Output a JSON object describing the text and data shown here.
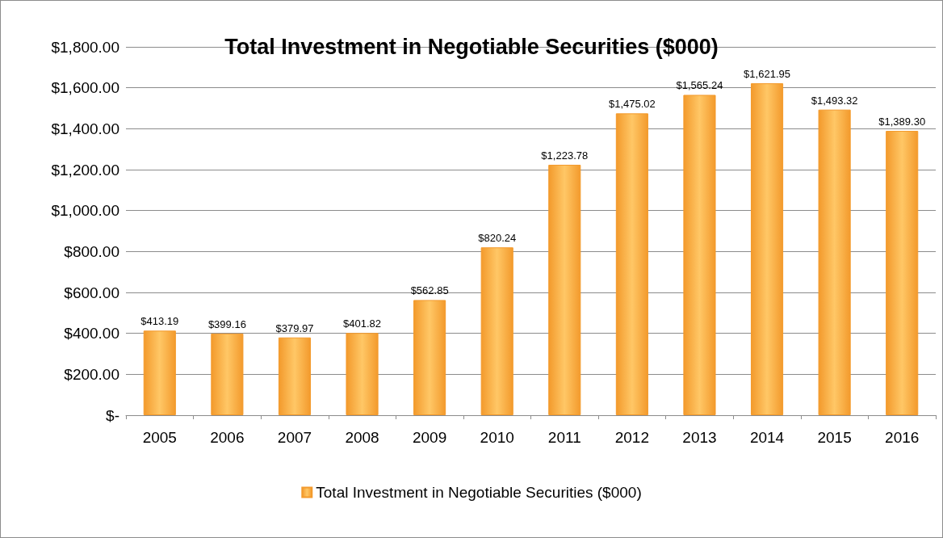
{
  "chart_data": {
    "type": "bar",
    "title": "Total Investment in Negotiable Securities ($000)",
    "categories": [
      "2005",
      "2006",
      "2007",
      "2008",
      "2009",
      "2010",
      "2011",
      "2012",
      "2013",
      "2014",
      "2015",
      "2016"
    ],
    "series": [
      {
        "name": "Total Investment in Negotiable Securities ($000)",
        "color": "#f39a2c",
        "values": [
          413.19,
          399.16,
          379.97,
          401.82,
          562.85,
          820.24,
          1223.78,
          1475.02,
          1565.24,
          1621.95,
          1493.32,
          1389.3
        ],
        "value_labels": [
          "$413.19",
          "$399.16",
          "$379.97",
          "$401.82",
          "$562.85",
          "$820.24",
          "$1,223.78",
          "$1,475.02",
          "$1,565.24",
          "$1,621.95",
          "$1,493.32",
          "$1,389.30"
        ]
      }
    ],
    "ylim": [
      0,
      1800
    ],
    "yticks": [
      {
        "value": 0,
        "label": "$-"
      },
      {
        "value": 200,
        "label": "$200.00"
      },
      {
        "value": 400,
        "label": "$400.00"
      },
      {
        "value": 600,
        "label": "$600.00"
      },
      {
        "value": 800,
        "label": "$800.00"
      },
      {
        "value": 1000,
        "label": "$1,000.00"
      },
      {
        "value": 1200,
        "label": "$1,200.00"
      },
      {
        "value": 1400,
        "label": "$1,400.00"
      },
      {
        "value": 1600,
        "label": "$1,600.00"
      },
      {
        "value": 1800,
        "label": "$1,800.00"
      }
    ],
    "grid": "y",
    "legend": "bottom"
  }
}
